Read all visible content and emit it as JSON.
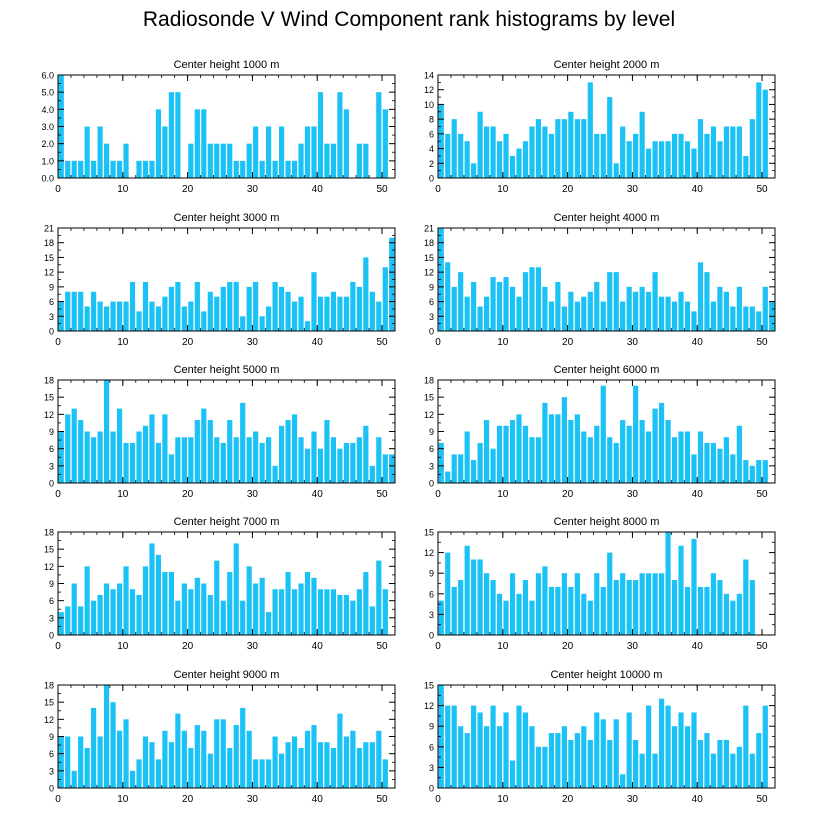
{
  "title": "Radiosonde V Wind Component rank histograms by level",
  "colors": {
    "bar": "#1AC2F5",
    "frame": "#000000",
    "background": "#FFFFFF"
  },
  "chart_data": [
    {
      "type": "bar",
      "title": "Center height 1000 m",
      "x": [
        0,
        1,
        2,
        3,
        4,
        5,
        6,
        7,
        8,
        9,
        10,
        11,
        12,
        13,
        14,
        15,
        16,
        17,
        18,
        19,
        20,
        21,
        22,
        23,
        24,
        25,
        26,
        27,
        28,
        29,
        30,
        31,
        32,
        33,
        34,
        35,
        36,
        37,
        38,
        39,
        40,
        41,
        42,
        43,
        44,
        45,
        46,
        47,
        48,
        49,
        50,
        51
      ],
      "values": [
        6,
        1,
        1,
        1,
        3,
        1,
        3,
        2,
        1,
        1,
        2,
        0,
        1,
        1,
        1,
        4,
        3,
        5,
        5,
        0,
        2,
        4,
        4,
        2,
        2,
        2,
        2,
        1,
        1,
        2,
        3,
        1,
        3,
        1,
        3,
        1,
        1,
        2,
        3,
        3,
        5,
        2,
        2,
        5,
        4,
        0,
        2,
        2,
        0,
        5,
        4,
        0
      ],
      "xlim": [
        0,
        52
      ],
      "ylim": [
        0,
        6
      ],
      "xticks": [
        0,
        10,
        20,
        30,
        40,
        50
      ],
      "yticks": [
        "0.0",
        "1.0",
        "2.0",
        "3.0",
        "4.0",
        "5.0",
        "6.0"
      ]
    },
    {
      "type": "bar",
      "title": "Center height 2000 m",
      "x": [
        0,
        1,
        2,
        3,
        4,
        5,
        6,
        7,
        8,
        9,
        10,
        11,
        12,
        13,
        14,
        15,
        16,
        17,
        18,
        19,
        20,
        21,
        22,
        23,
        24,
        25,
        26,
        27,
        28,
        29,
        30,
        31,
        32,
        33,
        34,
        35,
        36,
        37,
        38,
        39,
        40,
        41,
        42,
        43,
        44,
        45,
        46,
        47,
        48,
        49,
        50,
        51
      ],
      "values": [
        10,
        6,
        8,
        6,
        5,
        2,
        9,
        7,
        7,
        5,
        6,
        3,
        4,
        5,
        7,
        8,
        7,
        6,
        8,
        8,
        9,
        8,
        8,
        13,
        6,
        6,
        11,
        2,
        7,
        5,
        6,
        9,
        4,
        5,
        5,
        5,
        6,
        6,
        5,
        4,
        8,
        6,
        7,
        5,
        7,
        7,
        7,
        3,
        8,
        13,
        12,
        0
      ],
      "xlim": [
        0,
        52
      ],
      "ylim": [
        0,
        14
      ],
      "xticks": [
        0,
        10,
        20,
        30,
        40,
        50
      ],
      "yticks": [
        "0",
        "2",
        "4",
        "6",
        "8",
        "10",
        "12",
        "14"
      ]
    },
    {
      "type": "bar",
      "title": "Center height 3000 m",
      "x": [
        0,
        1,
        2,
        3,
        4,
        5,
        6,
        7,
        8,
        9,
        10,
        11,
        12,
        13,
        14,
        15,
        16,
        17,
        18,
        19,
        20,
        21,
        22,
        23,
        24,
        25,
        26,
        27,
        28,
        29,
        30,
        31,
        32,
        33,
        34,
        35,
        36,
        37,
        38,
        39,
        40,
        41,
        42,
        43,
        44,
        45,
        46,
        47,
        48,
        49,
        50,
        51
      ],
      "values": [
        6,
        8,
        8,
        8,
        5,
        8,
        6,
        5,
        6,
        6,
        6,
        10,
        4,
        10,
        6,
        5,
        7,
        9,
        10,
        5,
        6,
        10,
        4,
        8,
        7,
        9,
        10,
        10,
        3,
        9,
        10,
        3,
        5,
        10,
        9,
        8,
        6,
        7,
        2,
        12,
        7,
        7,
        8,
        7,
        7,
        10,
        9,
        15,
        8,
        6,
        13,
        19
      ],
      "xlim": [
        0,
        52
      ],
      "ylim": [
        0,
        21
      ],
      "xticks": [
        0,
        10,
        20,
        30,
        40,
        50
      ],
      "yticks": [
        "0",
        "3",
        "6",
        "9",
        "12",
        "15",
        "18",
        "21"
      ]
    },
    {
      "type": "bar",
      "title": "Center height 4000 m",
      "x": [
        0,
        1,
        2,
        3,
        4,
        5,
        6,
        7,
        8,
        9,
        10,
        11,
        12,
        13,
        14,
        15,
        16,
        17,
        18,
        19,
        20,
        21,
        22,
        23,
        24,
        25,
        26,
        27,
        28,
        29,
        30,
        31,
        32,
        33,
        34,
        35,
        36,
        37,
        38,
        39,
        40,
        41,
        42,
        43,
        44,
        45,
        46,
        47,
        48,
        49,
        50,
        51
      ],
      "values": [
        21,
        14,
        9,
        12,
        7,
        10,
        5,
        7,
        11,
        10,
        11,
        9,
        7,
        12,
        13,
        13,
        9,
        6,
        10,
        5,
        8,
        6,
        7,
        8,
        10,
        6,
        12,
        12,
        6,
        9,
        8,
        9,
        8,
        12,
        7,
        7,
        6,
        8,
        6,
        4,
        14,
        12,
        6,
        9,
        8,
        5,
        9,
        5,
        5,
        4,
        9,
        6
      ],
      "xlim": [
        0,
        52
      ],
      "ylim": [
        0,
        21
      ],
      "xticks": [
        0,
        10,
        20,
        30,
        40,
        50
      ],
      "yticks": [
        "0",
        "3",
        "6",
        "9",
        "12",
        "15",
        "18",
        "21"
      ]
    },
    {
      "type": "bar",
      "title": "Center height 5000 m",
      "x": [
        0,
        1,
        2,
        3,
        4,
        5,
        6,
        7,
        8,
        9,
        10,
        11,
        12,
        13,
        14,
        15,
        16,
        17,
        18,
        19,
        20,
        21,
        22,
        23,
        24,
        25,
        26,
        27,
        28,
        29,
        30,
        31,
        32,
        33,
        34,
        35,
        36,
        37,
        38,
        39,
        40,
        41,
        42,
        43,
        44,
        45,
        46,
        47,
        48,
        49,
        50,
        51
      ],
      "values": [
        9,
        12,
        13,
        11,
        9,
        8,
        9,
        18,
        9,
        13,
        7,
        7,
        9,
        10,
        12,
        7,
        12,
        5,
        8,
        8,
        8,
        11,
        13,
        11,
        8,
        7,
        11,
        8,
        14,
        8,
        9,
        7,
        8,
        3,
        10,
        11,
        12,
        8,
        6,
        9,
        6,
        11,
        8,
        6,
        7,
        7,
        8,
        10,
        3,
        8,
        5,
        5
      ],
      "xlim": [
        0,
        52
      ],
      "ylim": [
        0,
        18
      ],
      "xticks": [
        0,
        10,
        20,
        30,
        40,
        50
      ],
      "yticks": [
        "0",
        "3",
        "6",
        "9",
        "12",
        "15",
        "18"
      ]
    },
    {
      "type": "bar",
      "title": "Center height 6000 m",
      "x": [
        0,
        1,
        2,
        3,
        4,
        5,
        6,
        7,
        8,
        9,
        10,
        11,
        12,
        13,
        14,
        15,
        16,
        17,
        18,
        19,
        20,
        21,
        22,
        23,
        24,
        25,
        26,
        27,
        28,
        29,
        30,
        31,
        32,
        33,
        34,
        35,
        36,
        37,
        38,
        39,
        40,
        41,
        42,
        43,
        44,
        45,
        46,
        47,
        48,
        49,
        50,
        51
      ],
      "values": [
        7,
        2,
        5,
        5,
        9,
        4,
        7,
        11,
        6,
        10,
        10,
        11,
        12,
        10,
        8,
        8,
        14,
        12,
        12,
        15,
        11,
        12,
        9,
        8,
        10,
        17,
        8,
        7,
        11,
        10,
        17,
        11,
        9,
        13,
        14,
        11,
        8,
        9,
        9,
        5,
        9,
        7,
        7,
        6,
        8,
        5,
        10,
        4,
        3,
        4,
        4,
        0
      ],
      "xlim": [
        0,
        52
      ],
      "ylim": [
        0,
        18
      ],
      "xticks": [
        0,
        10,
        20,
        30,
        40,
        50
      ],
      "yticks": [
        "0",
        "3",
        "6",
        "9",
        "12",
        "15",
        "18"
      ]
    },
    {
      "type": "bar",
      "title": "Center height 7000 m",
      "x": [
        0,
        1,
        2,
        3,
        4,
        5,
        6,
        7,
        8,
        9,
        10,
        11,
        12,
        13,
        14,
        15,
        16,
        17,
        18,
        19,
        20,
        21,
        22,
        23,
        24,
        25,
        26,
        27,
        28,
        29,
        30,
        31,
        32,
        33,
        34,
        35,
        36,
        37,
        38,
        39,
        40,
        41,
        42,
        43,
        44,
        45,
        46,
        47,
        48,
        49,
        50,
        51
      ],
      "values": [
        4,
        5,
        9,
        5,
        12,
        6,
        7,
        9,
        8,
        9,
        12,
        8,
        7,
        12,
        16,
        14,
        11,
        11,
        6,
        9,
        8,
        10,
        9,
        7,
        13,
        6,
        11,
        16,
        6,
        12,
        9,
        10,
        4,
        8,
        8,
        11,
        8,
        9,
        11,
        10,
        8,
        8,
        8,
        7,
        7,
        6,
        8,
        11,
        5,
        13,
        8,
        0
      ],
      "xlim": [
        0,
        52
      ],
      "ylim": [
        0,
        18
      ],
      "xticks": [
        0,
        10,
        20,
        30,
        40,
        50
      ],
      "yticks": [
        "0",
        "3",
        "6",
        "9",
        "12",
        "15",
        "18"
      ]
    },
    {
      "type": "bar",
      "title": "Center height 8000 m",
      "x": [
        0,
        1,
        2,
        3,
        4,
        5,
        6,
        7,
        8,
        9,
        10,
        11,
        12,
        13,
        14,
        15,
        16,
        17,
        18,
        19,
        20,
        21,
        22,
        23,
        24,
        25,
        26,
        27,
        28,
        29,
        30,
        31,
        32,
        33,
        34,
        35,
        36,
        37,
        38,
        39,
        40,
        41,
        42,
        43,
        44,
        45,
        46,
        47,
        48,
        49,
        50,
        51
      ],
      "values": [
        5,
        12,
        7,
        8,
        13,
        11,
        11,
        9,
        8,
        6,
        5,
        9,
        6,
        8,
        5,
        9,
        10,
        7,
        7,
        9,
        7,
        9,
        6,
        5,
        9,
        7,
        12,
        8,
        9,
        8,
        8,
        9,
        9,
        9,
        9,
        15,
        8,
        13,
        7,
        14,
        7,
        7,
        9,
        8,
        6,
        5,
        6,
        11,
        8,
        0,
        0,
        0
      ],
      "xlim": [
        0,
        52
      ],
      "ylim": [
        0,
        15
      ],
      "xticks": [
        0,
        10,
        20,
        30,
        40,
        50
      ],
      "yticks": [
        "0",
        "3",
        "6",
        "9",
        "12",
        "15"
      ]
    },
    {
      "type": "bar",
      "title": "Center height 9000 m",
      "x": [
        0,
        1,
        2,
        3,
        4,
        5,
        6,
        7,
        8,
        9,
        10,
        11,
        12,
        13,
        14,
        15,
        16,
        17,
        18,
        19,
        20,
        21,
        22,
        23,
        24,
        25,
        26,
        27,
        28,
        29,
        30,
        31,
        32,
        33,
        34,
        35,
        36,
        37,
        38,
        39,
        40,
        41,
        42,
        43,
        44,
        45,
        46,
        47,
        48,
        49,
        50,
        51
      ],
      "values": [
        9,
        9,
        3,
        9,
        7,
        14,
        9,
        18,
        15,
        10,
        12,
        3,
        5,
        9,
        8,
        5,
        10,
        8,
        13,
        10,
        7,
        11,
        10,
        6,
        12,
        12,
        7,
        11,
        14,
        10,
        5,
        5,
        5,
        9,
        6,
        8,
        9,
        7,
        10,
        11,
        8,
        8,
        7,
        13,
        9,
        10,
        7,
        8,
        8,
        10,
        5,
        0
      ],
      "xlim": [
        0,
        52
      ],
      "ylim": [
        0,
        18
      ],
      "xticks": [
        0,
        10,
        20,
        30,
        40,
        50
      ],
      "yticks": [
        "0",
        "3",
        "6",
        "9",
        "12",
        "15",
        "18"
      ]
    },
    {
      "type": "bar",
      "title": "Center height 10000 m",
      "x": [
        0,
        1,
        2,
        3,
        4,
        5,
        6,
        7,
        8,
        9,
        10,
        11,
        12,
        13,
        14,
        15,
        16,
        17,
        18,
        19,
        20,
        21,
        22,
        23,
        24,
        25,
        26,
        27,
        28,
        29,
        30,
        31,
        32,
        33,
        34,
        35,
        36,
        37,
        38,
        39,
        40,
        41,
        42,
        43,
        44,
        45,
        46,
        47,
        48,
        49,
        50,
        51
      ],
      "values": [
        15,
        12,
        12,
        9,
        8,
        12,
        11,
        9,
        12,
        9,
        11,
        4,
        12,
        11,
        9,
        6,
        6,
        8,
        8,
        9,
        7,
        8,
        9,
        7,
        11,
        10,
        7,
        10,
        2,
        11,
        7,
        5,
        12,
        5,
        13,
        12,
        9,
        11,
        9,
        11,
        7,
        8,
        5,
        7,
        7,
        5,
        6,
        12,
        5,
        8,
        12,
        0
      ],
      "xlim": [
        0,
        52
      ],
      "ylim": [
        0,
        15
      ],
      "xticks": [
        0,
        10,
        20,
        30,
        40,
        50
      ],
      "yticks": [
        "0",
        "3",
        "6",
        "9",
        "12",
        "15"
      ]
    }
  ]
}
